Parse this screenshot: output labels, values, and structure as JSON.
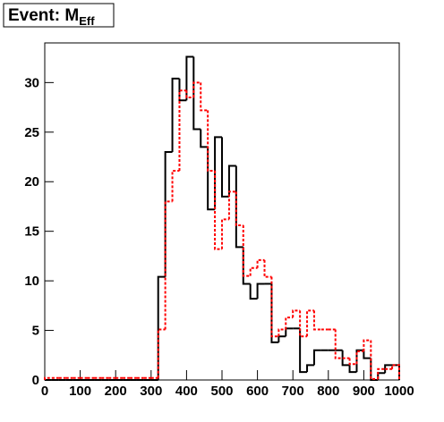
{
  "chart_data": {
    "type": "step-histogram",
    "title": "Event: M",
    "title_subscript": "Eff",
    "bins": [
      0,
      20,
      40,
      60,
      80,
      100,
      120,
      140,
      160,
      180,
      200,
      220,
      240,
      260,
      280,
      300,
      320,
      340,
      360,
      380,
      400,
      420,
      440,
      460,
      480,
      500,
      520,
      540,
      560,
      580,
      600,
      620,
      640,
      660,
      680,
      700,
      720,
      740,
      760,
      780,
      800,
      820,
      840,
      860,
      880,
      900,
      920,
      940,
      960,
      980,
      1000
    ],
    "series": [
      {
        "color": "#000000",
        "dash": false,
        "values": [
          0,
          0,
          0,
          0,
          0,
          0,
          0,
          0,
          0,
          0,
          0,
          0,
          0,
          0,
          0,
          0,
          10.4,
          23,
          30.4,
          28.2,
          32.6,
          25.3,
          23.5,
          17.2,
          24.5,
          18.5,
          21.6,
          13.4,
          9.7,
          8.2,
          9.7,
          9.7,
          3.8,
          4.4,
          5.2,
          5.2,
          0.8,
          1.5,
          3.0,
          3.0,
          3.0,
          3.0,
          1.5,
          0.8,
          3.0,
          2.2,
          0,
          0.7,
          1.5,
          1.5
        ]
      },
      {
        "color": "#ff0000",
        "dash": true,
        "values": [
          0.2,
          0.2,
          0.2,
          0.2,
          0.2,
          0.2,
          0.2,
          0.2,
          0.2,
          0.2,
          0.2,
          0.2,
          0.2,
          0.2,
          0.2,
          0.2,
          5.1,
          18,
          21.1,
          29.2,
          28.5,
          30.0,
          27.2,
          21.1,
          13.2,
          16.2,
          19.0,
          15.6,
          10.5,
          11.3,
          12.1,
          10.4,
          4.4,
          5.1,
          6.3,
          7.0,
          4.4,
          7.0,
          5.1,
          5.1,
          5.1,
          2.2,
          2.2,
          1.6,
          2.9,
          4.0,
          0.1,
          1.1,
          1.1,
          1.5
        ]
      }
    ],
    "xlim": [
      0,
      1000
    ],
    "xticks": [
      0,
      100,
      200,
      300,
      400,
      500,
      600,
      700,
      800,
      900,
      1000
    ],
    "ylim": [
      0,
      34
    ],
    "yticks": [
      0,
      5,
      10,
      15,
      20,
      25,
      30
    ]
  }
}
